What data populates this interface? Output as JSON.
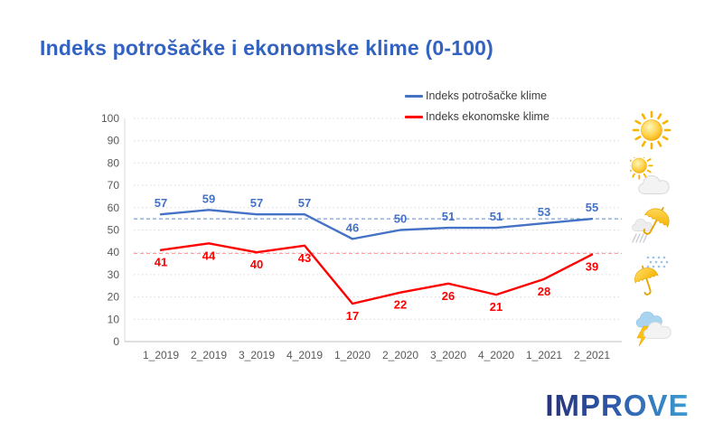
{
  "title": "Indeks potrošačke i ekonomske klime (0-100)",
  "chart_data": {
    "type": "line",
    "title": "Indeks potrošačke i ekonomske klime (0-100)",
    "categories": [
      "1_2019",
      "2_2019",
      "3_2019",
      "4_2019",
      "1_2020",
      "2_2020",
      "3_2020",
      "4_2020",
      "1_2021",
      "2_2021"
    ],
    "series": [
      {
        "name": "Indeks potrošačke klime",
        "values": [
          57,
          59,
          57,
          57,
          46,
          50,
          51,
          51,
          53,
          55
        ],
        "color": "#4472C4",
        "label_dy": -8
      },
      {
        "name": "Indeks ekonomske klime",
        "values": [
          41,
          44,
          40,
          43,
          17,
          22,
          26,
          21,
          28,
          39
        ],
        "color": "#FF0000",
        "label_dy": 18
      }
    ],
    "ref_lines": [
      {
        "value": 55,
        "color": "#4472C4"
      },
      {
        "value": 39.5,
        "color": "#FF7C80"
      }
    ],
    "xlabel": "",
    "ylabel": "",
    "ylim": [
      0,
      100
    ],
    "ytick_step": 10,
    "grid": "horizontal-dotted",
    "legend_position": "top-right",
    "data_labels": true
  },
  "weather_icons": [
    {
      "name": "sun"
    },
    {
      "name": "sun-behind-cloud"
    },
    {
      "name": "umbrella-with-rain-cloud"
    },
    {
      "name": "umbrella-with-rain"
    },
    {
      "name": "cloud-with-lightning"
    }
  ],
  "footer": {
    "logo_text": "IMPROVE"
  },
  "colors": {
    "title": "#3362C1",
    "axis_text": "#595959",
    "grid": "#D9D9D9",
    "axis_line": "#BFBFBF",
    "legend_text": "#404040",
    "series1": "#4472C4",
    "series2": "#FF0000"
  }
}
